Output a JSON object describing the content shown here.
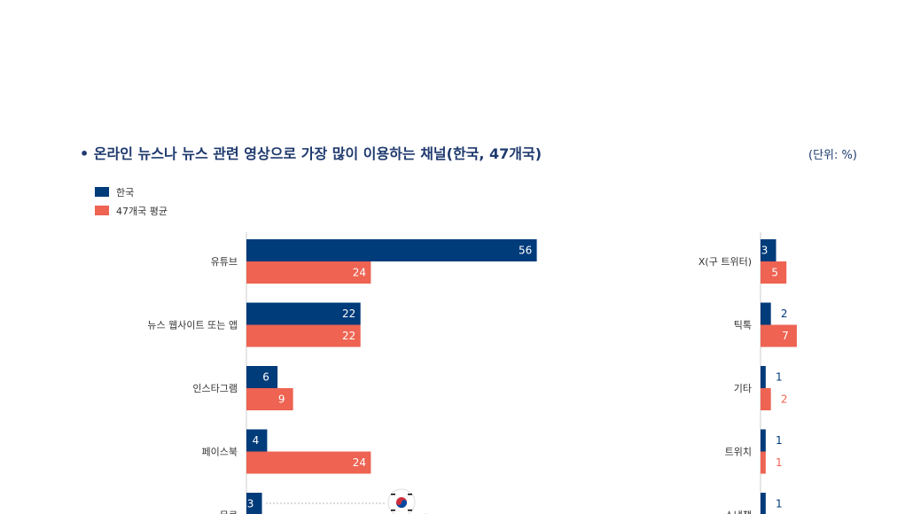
{
  "header": {
    "title": "• 온라인 뉴스나 뉴스 관련 영상으로 가장 많이 이용하는 채널(한국, 47개국)",
    "unit": "(단위: %)"
  },
  "colors": {
    "korea": "#003b7a",
    "avg": "#ee6352",
    "label_on_bar": "#ffffff"
  },
  "flag_icon": "korea-flag-icon",
  "chart_data": {
    "type": "bar",
    "orientation": "horizontal",
    "legend": {
      "position": "top-left"
    },
    "series": [
      {
        "name": "한국",
        "color": "#003b7a"
      },
      {
        "name": "47개국 평균",
        "color": "#ee6352"
      }
    ],
    "panels": [
      {
        "categories": [
          "유튜브",
          "뉴스 웹사이트 또는 앱",
          "인스타그램",
          "페이스북",
          "무료"
        ],
        "values": {
          "한국": [
            56,
            22,
            6,
            4,
            3
          ],
          "47개국 평균": [
            24,
            22,
            9,
            24,
            null
          ]
        }
      },
      {
        "categories": [
          "X(구 트위터)",
          "틱톡",
          "기타",
          "트위치",
          "스냅챗"
        ],
        "values": {
          "한국": [
            3,
            2,
            1,
            1,
            1
          ],
          "47개국 평균": [
            5,
            7,
            2,
            1,
            null
          ]
        }
      }
    ]
  }
}
